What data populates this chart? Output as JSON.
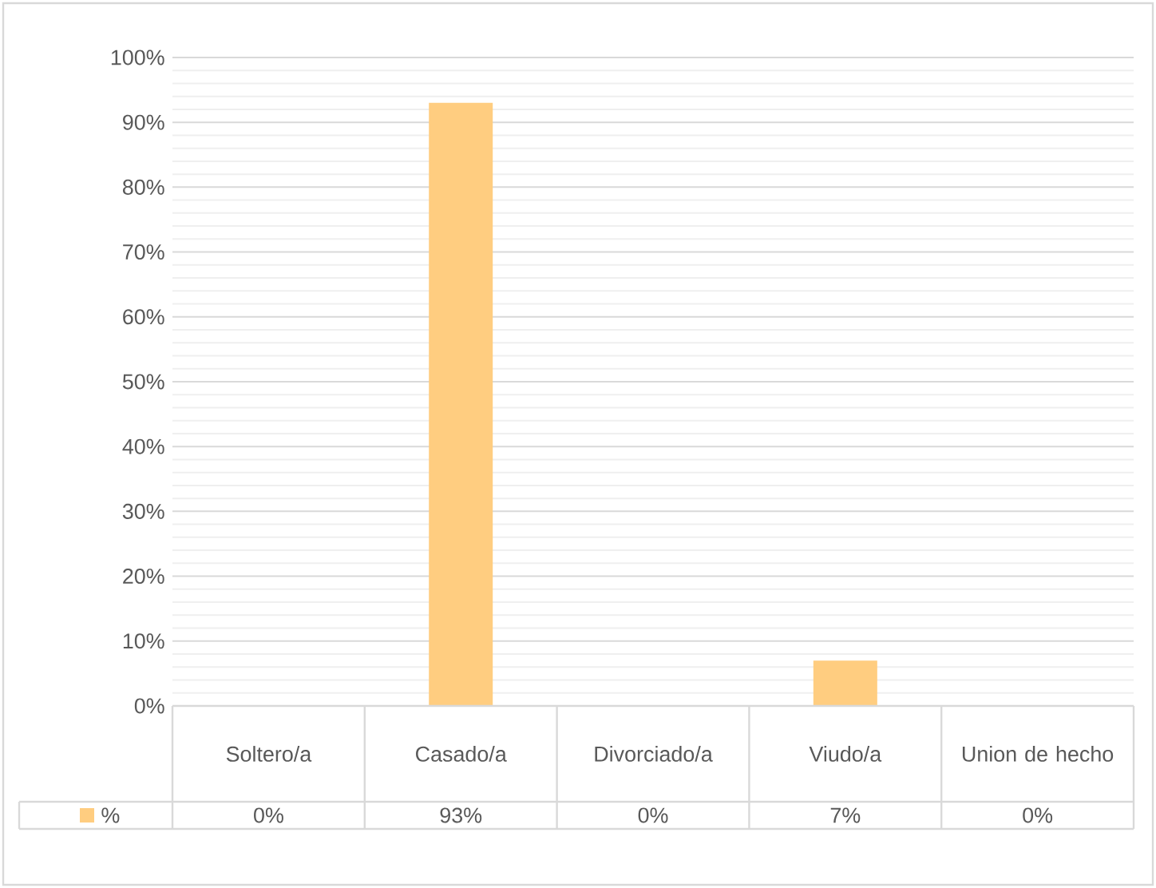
{
  "chart_data": {
    "type": "bar",
    "categories": [
      "Soltero/a",
      "Casado/a",
      "Divorciado/a",
      "Viudo/a",
      "Union de hecho"
    ],
    "series": [
      {
        "name": "%",
        "color": "#ffcd80",
        "values": [
          0,
          93,
          0,
          7,
          0
        ],
        "value_labels": [
          "0%",
          "93%",
          "0%",
          "7%",
          "0%"
        ]
      }
    ],
    "ylim": [
      0,
      100
    ],
    "yticks": [
      {
        "value": 0,
        "label": "0%"
      },
      {
        "value": 10,
        "label": "10%"
      },
      {
        "value": 20,
        "label": "20%"
      },
      {
        "value": 30,
        "label": "30%"
      },
      {
        "value": 40,
        "label": "40%"
      },
      {
        "value": 50,
        "label": "50%"
      },
      {
        "value": 60,
        "label": "60%"
      },
      {
        "value": 70,
        "label": "70%"
      },
      {
        "value": 80,
        "label": "80%"
      },
      {
        "value": 90,
        "label": "90%"
      },
      {
        "value": 100,
        "label": "100%"
      }
    ],
    "grid": "y",
    "legend": "bottom"
  }
}
